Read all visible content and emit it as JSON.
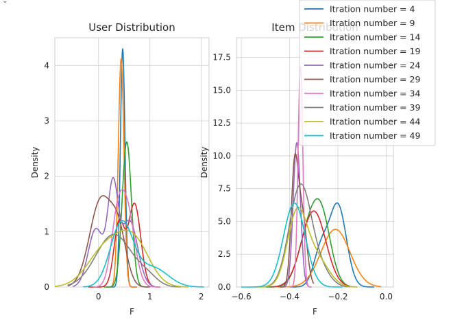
{
  "corner_glyph": "⌄",
  "colors": [
    "#1f77b4",
    "#ff7f0e",
    "#2ca02c",
    "#d62728",
    "#9467bd",
    "#8c564b",
    "#e377c2",
    "#7f7f7f",
    "#bcbd22",
    "#17becf"
  ],
  "chart_data": [
    {
      "type": "line",
      "kind": "kde-density",
      "title": "User Distribution",
      "xlabel": "F",
      "ylabel": "Density",
      "xlim": [
        -0.85,
        2.15
      ],
      "ylim": [
        0,
        4.5
      ],
      "xticks": [
        0,
        1,
        2
      ],
      "yticks": [
        0,
        1,
        2,
        3,
        4
      ],
      "grid": true,
      "series": [
        {
          "name": "Itration number = 4",
          "peaks": [
            [
              0.47,
              4.3,
              0.045
            ]
          ],
          "x": [
            0.2,
            0.75
          ]
        },
        {
          "name": "Itration number = 9",
          "peaks": [
            [
              0.44,
              4.12,
              0.055
            ]
          ],
          "x": [
            0.15,
            0.75
          ]
        },
        {
          "name": "Itration number = 14",
          "peaks": [
            [
              0.55,
              2.62,
              0.09
            ]
          ],
          "x": [
            0.1,
            0.95
          ]
        },
        {
          "name": "Itration number = 19",
          "peaks": [
            [
              0.4,
              1.15,
              0.1
            ],
            [
              0.7,
              1.5,
              0.12
            ]
          ],
          "x": [
            -0.2,
            1.2
          ]
        },
        {
          "name": "Itration number = 24",
          "peaks": [
            [
              -0.05,
              1.05,
              0.15
            ],
            [
              0.28,
              1.72,
              0.1
            ],
            [
              0.6,
              1.2,
              0.16
            ]
          ],
          "x": [
            -0.5,
            1.1
          ]
        },
        {
          "name": "Itration number = 29",
          "peaks": [
            [
              0.05,
              1.58,
              0.22
            ],
            [
              0.4,
              0.8,
              0.15
            ]
          ],
          "x": [
            -0.6,
            1.0
          ]
        },
        {
          "name": "Itration number = 34",
          "peaks": [
            [
              0.35,
              0.9,
              0.12
            ],
            [
              0.55,
              1.4,
              0.15
            ]
          ],
          "x": [
            -0.1,
            1.2
          ]
        },
        {
          "name": "Itration number = 39",
          "peaks": [
            [
              0.3,
              0.95,
              0.35
            ],
            [
              0.95,
              0.15,
              0.2
            ]
          ],
          "x": [
            -0.6,
            1.6
          ]
        },
        {
          "name": "Itration number = 44",
          "peaks": [
            [
              0.15,
              0.7,
              0.35
            ],
            [
              0.7,
              0.75,
              0.3
            ]
          ],
          "x": [
            -0.85,
            1.75
          ]
        },
        {
          "name": "Itration number = 49",
          "peaks": [
            [
              0.45,
              1.15,
              0.22
            ],
            [
              1.05,
              0.35,
              0.3
            ]
          ],
          "x": [
            -0.3,
            2.05
          ]
        }
      ]
    },
    {
      "type": "line",
      "kind": "kde-density",
      "title": "Item Distribution",
      "xlabel": "F",
      "ylabel": "Density",
      "xlim": [
        -0.62,
        0.03
      ],
      "ylim": [
        0,
        19
      ],
      "xticks": [
        -0.6,
        -0.4,
        -0.2,
        0.0
      ],
      "xtick_labels": [
        "−0.6",
        "−0.4",
        "−0.2",
        "0.0"
      ],
      "yticks": [
        0,
        2.5,
        5.0,
        7.5,
        10.0,
        12.5,
        15.0,
        17.5
      ],
      "ytick_labels": [
        "0.0",
        "2.5",
        "5.0",
        "7.5",
        "10.0",
        "12.5",
        "15.0",
        "17.5"
      ],
      "grid": true,
      "series": [
        {
          "name": "Itration number = 4",
          "peaks": [
            [
              -0.27,
              2.8,
              0.03
            ],
            [
              -0.2,
              6.2,
              0.035
            ]
          ],
          "x": [
            -0.4,
            -0.05
          ]
        },
        {
          "name": "Itration number = 9",
          "peaks": [
            [
              -0.21,
              4.4,
              0.06
            ]
          ],
          "x": [
            -0.45,
            -0.02
          ]
        },
        {
          "name": "Itration number = 14",
          "peaks": [
            [
              -0.33,
              3.2,
              0.04
            ],
            [
              -0.27,
              5.4,
              0.04
            ]
          ],
          "x": [
            -0.5,
            -0.12
          ]
        },
        {
          "name": "Itration number = 19",
          "peaks": [
            [
              -0.3,
              5.8,
              0.05
            ]
          ],
          "x": [
            -0.48,
            -0.15
          ]
        },
        {
          "name": "Itration number = 24",
          "peaks": [
            [
              -0.37,
              11.0,
              0.015
            ]
          ],
          "x": [
            -0.43,
            -0.31
          ]
        },
        {
          "name": "Itration number = 29",
          "peaks": [
            [
              -0.38,
              8.0,
              0.014
            ],
            [
              -0.35,
              5.8,
              0.02
            ]
          ],
          "x": [
            -0.44,
            -0.3
          ]
        },
        {
          "name": "Itration number = 34",
          "peaks": [
            [
              -0.355,
              16.8,
              0.01
            ]
          ],
          "x": [
            -0.4,
            -0.31
          ]
        },
        {
          "name": "Itration number = 39",
          "peaks": [
            [
              -0.38,
              3.5,
              0.04
            ],
            [
              -0.34,
              5.2,
              0.04
            ],
            [
              -0.27,
              1.2,
              0.04
            ]
          ],
          "x": [
            -0.52,
            -0.15
          ]
        },
        {
          "name": "Itration number = 44",
          "peaks": [
            [
              -0.37,
              5.4,
              0.04
            ],
            [
              -0.29,
              2.2,
              0.05
            ]
          ],
          "x": [
            -0.55,
            -0.12
          ]
        },
        {
          "name": "Itration number = 49",
          "peaks": [
            [
              -0.38,
              6.4,
              0.045
            ]
          ],
          "x": [
            -0.6,
            -0.18
          ]
        }
      ]
    }
  ],
  "legend": {
    "placement": "top-right",
    "entries": [
      "Itration number = 4",
      "Itration number = 9",
      "Itration number = 14",
      "Itration number = 19",
      "Itration number = 24",
      "Itration number = 29",
      "Itration number = 34",
      "Itration number = 39",
      "Itration number = 44",
      "Itration number = 49"
    ]
  }
}
